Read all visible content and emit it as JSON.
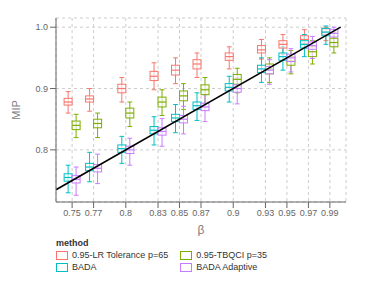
{
  "chart_data": {
    "type": "box",
    "xlabel": "β",
    "ylabel": "MIP",
    "legend_title": "method",
    "legend": "bottom",
    "grid": true,
    "xlim": [
      0.735,
      1.005
    ],
    "ylim": [
      0.715,
      1.015
    ],
    "xticks": [
      0.75,
      0.77,
      0.8,
      0.83,
      0.85,
      0.87,
      0.9,
      0.93,
      0.95,
      0.97,
      0.99
    ],
    "yticks": [
      0.8,
      0.9,
      {
        "value": 1.0,
        "label": "1.0"
      }
    ],
    "x": [
      0.75,
      0.77,
      0.8,
      0.83,
      0.85,
      0.87,
      0.9,
      0.93,
      0.95,
      0.97,
      0.99
    ],
    "series": [
      {
        "name": "0.95-LR Tolerance p=65",
        "color": "#F8766D",
        "medians": [
          0.878,
          0.883,
          0.9,
          0.92,
          0.93,
          0.94,
          0.952,
          0.963,
          0.972,
          0.98,
          0.992
        ],
        "q1": [
          0.873,
          0.878,
          0.893,
          0.913,
          0.922,
          0.932,
          0.946,
          0.958,
          0.966,
          0.974,
          0.988
        ],
        "q3": [
          0.884,
          0.888,
          0.907,
          0.928,
          0.938,
          0.947,
          0.958,
          0.97,
          0.978,
          0.986,
          0.997
        ],
        "whisker_low": [
          0.86,
          0.863,
          0.878,
          0.898,
          0.908,
          0.918,
          0.932,
          0.948,
          0.956,
          0.966,
          0.978
        ],
        "whisker_high": [
          0.895,
          0.9,
          0.918,
          0.942,
          0.95,
          0.958,
          0.968,
          0.98,
          0.988,
          0.996,
          1.0
        ]
      },
      {
        "name": "0.95-TBQCI p=35",
        "color": "#7CAE00",
        "medians": [
          0.84,
          0.843,
          0.86,
          0.878,
          0.888,
          0.898,
          0.915,
          0.932,
          0.945,
          0.96,
          0.975
        ],
        "q1": [
          0.833,
          0.836,
          0.852,
          0.87,
          0.88,
          0.89,
          0.907,
          0.924,
          0.938,
          0.952,
          0.968
        ],
        "q3": [
          0.847,
          0.85,
          0.868,
          0.886,
          0.896,
          0.906,
          0.923,
          0.94,
          0.952,
          0.968,
          0.982
        ],
        "whisker_low": [
          0.82,
          0.82,
          0.838,
          0.856,
          0.866,
          0.876,
          0.893,
          0.91,
          0.924,
          0.94,
          0.958
        ],
        "whisker_high": [
          0.858,
          0.86,
          0.878,
          0.898,
          0.908,
          0.918,
          0.933,
          0.95,
          0.962,
          0.978,
          0.992
        ]
      },
      {
        "name": "BADA",
        "color": "#00BFC4",
        "medians": [
          0.755,
          0.772,
          0.802,
          0.832,
          0.852,
          0.872,
          0.902,
          0.932,
          0.952,
          0.972,
          0.992
        ],
        "q1": [
          0.749,
          0.766,
          0.796,
          0.826,
          0.846,
          0.866,
          0.896,
          0.926,
          0.946,
          0.966,
          0.986
        ],
        "q3": [
          0.761,
          0.778,
          0.808,
          0.838,
          0.858,
          0.878,
          0.908,
          0.938,
          0.958,
          0.978,
          0.998
        ],
        "whisker_low": [
          0.73,
          0.748,
          0.778,
          0.808,
          0.828,
          0.848,
          0.878,
          0.91,
          0.93,
          0.952,
          0.972
        ],
        "whisker_high": [
          0.775,
          0.796,
          0.822,
          0.854,
          0.874,
          0.893,
          0.92,
          0.95,
          0.968,
          0.988,
          1.002
        ]
      },
      {
        "name": "BADA Adaptive",
        "color": "#C77CFF",
        "medians": [
          0.752,
          0.77,
          0.8,
          0.83,
          0.85,
          0.87,
          0.9,
          0.93,
          0.95,
          0.97,
          0.99
        ],
        "q1": [
          0.746,
          0.764,
          0.794,
          0.824,
          0.844,
          0.864,
          0.894,
          0.924,
          0.944,
          0.964,
          0.984
        ],
        "q3": [
          0.758,
          0.776,
          0.806,
          0.836,
          0.856,
          0.876,
          0.906,
          0.936,
          0.956,
          0.976,
          0.996
        ],
        "whisker_low": [
          0.726,
          0.745,
          0.775,
          0.806,
          0.826,
          0.846,
          0.875,
          0.907,
          0.927,
          0.949,
          0.969
        ],
        "whisker_high": [
          0.772,
          0.793,
          0.819,
          0.851,
          0.871,
          0.89,
          0.917,
          0.947,
          0.965,
          0.985,
          1.0
        ]
      }
    ],
    "reference_line": {
      "x": [
        0.735,
        1.0
      ],
      "y": [
        0.735,
        1.0
      ]
    }
  }
}
